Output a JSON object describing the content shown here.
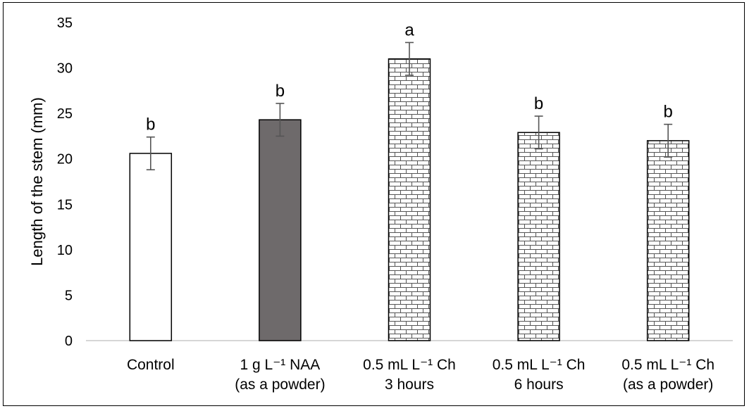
{
  "chart_data": {
    "type": "bar",
    "ylabel": "Length of the stem (mm)",
    "ylim": [
      0,
      35
    ],
    "yticks": [
      0,
      5,
      10,
      15,
      20,
      25,
      30,
      35
    ],
    "grid": false,
    "legend": "none",
    "categories": [
      {
        "lines": [
          "Control"
        ]
      },
      {
        "lines": [
          "1 g L⁻¹ NAA",
          "(as a powder)"
        ]
      },
      {
        "lines": [
          "0.5 mL L⁻¹ Ch",
          "3 hours"
        ]
      },
      {
        "lines": [
          "0.5 mL L⁻¹ Ch",
          "6 hours"
        ]
      },
      {
        "lines": [
          "0.5 mL L⁻¹ Ch",
          "(as a powder)"
        ]
      }
    ],
    "values": [
      20.6,
      24.3,
      31.0,
      22.9,
      22.0
    ],
    "errors": [
      1.8,
      1.8,
      1.8,
      1.8,
      1.8
    ],
    "significance": [
      "b",
      "b",
      "a",
      "b",
      "b"
    ],
    "fills": [
      "white",
      "dark-gray",
      "brick-pattern",
      "brick-pattern",
      "brick-pattern"
    ],
    "colors": {
      "dark": "#6e6a6b",
      "border": "#000000",
      "error": "#555555"
    }
  }
}
